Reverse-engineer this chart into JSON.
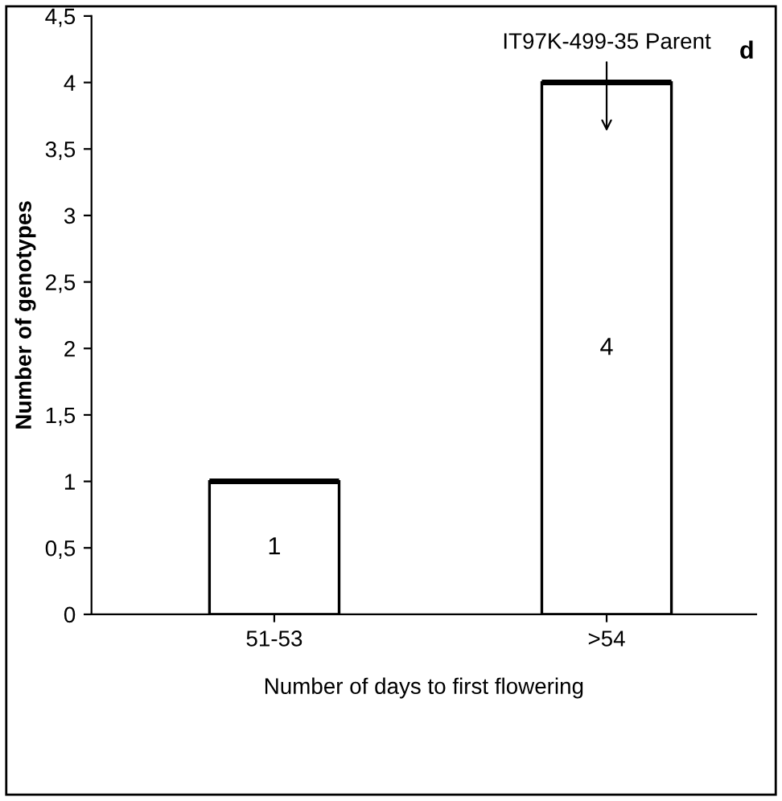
{
  "chart_data": {
    "type": "bar",
    "xlabel": "Number of days to first flowering",
    "ylabel": "Number of genotypes",
    "categories": [
      "51-53",
      ">54"
    ],
    "values": [
      1,
      4
    ],
    "color": "#ffffff",
    "data_labels": true,
    "ylim": [
      0,
      4.5
    ],
    "yticks": [
      0,
      {
        "value": 0.5,
        "label": "0,5"
      },
      1,
      {
        "value": 1.5,
        "label": "1,5"
      },
      2,
      {
        "value": 2.5,
        "label": "2,5"
      },
      3,
      {
        "value": 3.5,
        "label": "3,5"
      },
      4,
      {
        "value": 4.5,
        "label": "4,5"
      }
    ],
    "grid": false,
    "legend": false,
    "annotations": [
      "IT97K-499-35 Parent",
      "d"
    ]
  }
}
